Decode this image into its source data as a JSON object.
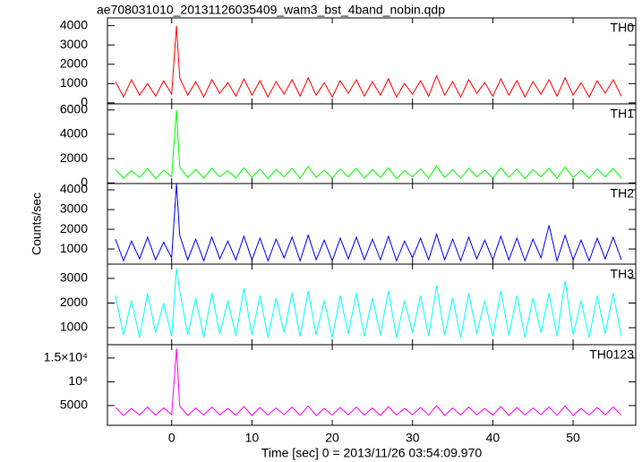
{
  "figure": {
    "title": "ae708031010_20131126035409_wam3_bst_4band_nobin.qdp",
    "xlabel": "Time [sec] 0 = 2013/11/26 03:54:09.970",
    "ylabel": "Counts/sec"
  },
  "chart_data": [
    {
      "type": "line",
      "x": [
        -7,
        -6,
        -5,
        -4,
        -3,
        -2,
        -1,
        0,
        0.6,
        1,
        2,
        3,
        4,
        5,
        6,
        7,
        8,
        9,
        10,
        11,
        12,
        13,
        14,
        15,
        16,
        17,
        18,
        19,
        20,
        21,
        22,
        23,
        24,
        25,
        26,
        27,
        28,
        29,
        30,
        31,
        32,
        33,
        34,
        35,
        36,
        37,
        38,
        39,
        40,
        41,
        42,
        43,
        44,
        45,
        46,
        47,
        48,
        49,
        50,
        51,
        52,
        53,
        54,
        55,
        56
      ],
      "series": [
        {
          "name": "TH0",
          "color": "#ff0000",
          "values": [
            1100,
            300,
            1200,
            400,
            1000,
            350,
            1150,
            450,
            4000,
            1300,
            400,
            1100,
            300,
            1200,
            500,
            1050,
            350,
            1250,
            400,
            1150,
            300,
            1100,
            450,
            1200,
            350,
            1300,
            400,
            1050,
            300,
            1150,
            500,
            1200,
            350,
            1100,
            400,
            1250,
            300,
            1000,
            450,
            1150,
            350,
            1400,
            400,
            1100,
            300,
            1200,
            500,
            1050,
            350,
            1250,
            400,
            1150,
            300,
            1100,
            450,
            1200,
            350,
            1300,
            400,
            1050,
            300,
            1150,
            500,
            1200,
            350
          ]
        }
      ],
      "xlim": [
        -8,
        57.8
      ],
      "xticks": [
        0,
        10,
        20,
        30,
        40,
        50
      ],
      "ylim": [
        -50,
        4400
      ],
      "yticks": [
        0,
        1000,
        2000,
        3000,
        4000
      ]
    },
    {
      "type": "line",
      "x": [
        -7,
        -6,
        -5,
        -4,
        -3,
        -2,
        -1,
        0,
        0.6,
        1,
        2,
        3,
        4,
        5,
        6,
        7,
        8,
        9,
        10,
        11,
        12,
        13,
        14,
        15,
        16,
        17,
        18,
        19,
        20,
        21,
        22,
        23,
        24,
        25,
        26,
        27,
        28,
        29,
        30,
        31,
        32,
        33,
        34,
        35,
        36,
        37,
        38,
        39,
        40,
        41,
        42,
        43,
        44,
        45,
        46,
        47,
        48,
        49,
        50,
        51,
        52,
        53,
        54,
        55,
        56
      ],
      "series": [
        {
          "name": "TH1",
          "color": "#00ff00",
          "values": [
            1100,
            400,
            1000,
            450,
            1200,
            350,
            1050,
            500,
            6000,
            1300,
            450,
            1100,
            400,
            1200,
            500,
            1000,
            400,
            1250,
            450,
            1150,
            350,
            1100,
            500,
            1200,
            400,
            1350,
            450,
            1050,
            400,
            1150,
            500,
            1200,
            400,
            1100,
            450,
            1250,
            350,
            1000,
            500,
            1150,
            400,
            1400,
            450,
            1100,
            400,
            1200,
            500,
            1050,
            400,
            1250,
            450,
            1150,
            350,
            1100,
            500,
            1200,
            400,
            1300,
            450,
            1050,
            400,
            1150,
            500,
            1200,
            400
          ]
        }
      ],
      "xlim": [
        -8,
        57.8
      ],
      "xticks": [
        0,
        10,
        20,
        30,
        40,
        50
      ],
      "ylim": [
        -50,
        6500
      ],
      "yticks": [
        0,
        2000,
        4000,
        6000
      ]
    },
    {
      "type": "line",
      "x": [
        -7,
        -6,
        -5,
        -4,
        -3,
        -2,
        -1,
        0,
        0.6,
        1,
        2,
        3,
        4,
        5,
        6,
        7,
        8,
        9,
        10,
        11,
        12,
        13,
        14,
        15,
        16,
        17,
        18,
        19,
        20,
        21,
        22,
        23,
        24,
        25,
        26,
        27,
        28,
        29,
        30,
        31,
        32,
        33,
        34,
        35,
        36,
        37,
        38,
        39,
        40,
        41,
        42,
        43,
        44,
        45,
        46,
        47,
        48,
        49,
        50,
        51,
        52,
        53,
        54,
        55,
        56
      ],
      "series": [
        {
          "name": "TH2",
          "color": "#0000ff",
          "values": [
            1500,
            400,
            1400,
            500,
            1600,
            450,
            1350,
            550,
            4300,
            1700,
            450,
            1500,
            400,
            1600,
            500,
            1400,
            450,
            1650,
            450,
            1550,
            400,
            1500,
            550,
            1600,
            400,
            1700,
            450,
            1450,
            400,
            1550,
            500,
            1600,
            450,
            1500,
            450,
            1650,
            400,
            1400,
            550,
            1550,
            450,
            1750,
            450,
            1500,
            400,
            1600,
            500,
            1450,
            450,
            1650,
            450,
            1550,
            400,
            1500,
            550,
            2200,
            400,
            1700,
            450,
            1450,
            400,
            1550,
            500,
            1600,
            450
          ]
        }
      ],
      "xlim": [
        -8,
        57.8
      ],
      "xticks": [
        0,
        10,
        20,
        30,
        40,
        50
      ],
      "ylim": [
        230,
        4320
      ],
      "yticks": [
        1000,
        2000,
        3000,
        4000
      ]
    },
    {
      "type": "line",
      "x": [
        -7,
        -6,
        -5,
        -4,
        -3,
        -2,
        -1,
        0,
        0.6,
        1,
        2,
        3,
        4,
        5,
        6,
        7,
        8,
        9,
        10,
        11,
        12,
        13,
        14,
        15,
        16,
        17,
        18,
        19,
        20,
        21,
        22,
        23,
        24,
        25,
        26,
        27,
        28,
        29,
        30,
        31,
        32,
        33,
        34,
        35,
        36,
        37,
        38,
        39,
        40,
        41,
        42,
        43,
        44,
        45,
        46,
        47,
        48,
        49,
        50,
        51,
        52,
        53,
        54,
        55,
        56
      ],
      "series": [
        {
          "name": "TH3",
          "color": "#00ffff",
          "values": [
            2300,
            700,
            2100,
            600,
            2400,
            800,
            2000,
            650,
            3400,
            2500,
            700,
            2200,
            600,
            2400,
            750,
            2100,
            650,
            2600,
            700,
            2300,
            600,
            2200,
            800,
            2400,
            650,
            2500,
            700,
            2100,
            600,
            2300,
            750,
            2400,
            650,
            2200,
            700,
            2500,
            600,
            2100,
            800,
            2300,
            650,
            2700,
            700,
            2200,
            600,
            2400,
            750,
            2100,
            650,
            2500,
            700,
            2300,
            600,
            2200,
            800,
            2400,
            650,
            2900,
            700,
            2100,
            600,
            2300,
            750,
            2400,
            650
          ]
        }
      ],
      "xlim": [
        -8,
        57.8
      ],
      "xticks": [
        0,
        10,
        20,
        30,
        40,
        50
      ],
      "ylim": [
        310,
        3580
      ],
      "yticks": [
        1000,
        2000,
        3000
      ]
    },
    {
      "type": "line",
      "x": [
        -7,
        -6,
        -5,
        -4,
        -3,
        -2,
        -1,
        0,
        0.6,
        1,
        2,
        3,
        4,
        5,
        6,
        7,
        8,
        9,
        10,
        11,
        12,
        13,
        14,
        15,
        16,
        17,
        18,
        19,
        20,
        21,
        22,
        23,
        24,
        25,
        26,
        27,
        28,
        29,
        30,
        31,
        32,
        33,
        34,
        35,
        36,
        37,
        38,
        39,
        40,
        41,
        42,
        43,
        44,
        45,
        46,
        47,
        48,
        49,
        50,
        51,
        52,
        53,
        54,
        55,
        56
      ],
      "series": [
        {
          "name": "TH0123",
          "color": "#ff00ff",
          "values": [
            4600,
            2900,
            4400,
            3000,
            4700,
            2950,
            4500,
            3100,
            17000,
            4900,
            2900,
            4500,
            3000,
            4700,
            3050,
            4400,
            2950,
            4800,
            2900,
            4600,
            3000,
            4500,
            3100,
            4700,
            2950,
            4900,
            2900,
            4400,
            3000,
            4600,
            3050,
            4700,
            2950,
            4500,
            2900,
            4800,
            3000,
            4400,
            3100,
            4600,
            2950,
            5000,
            2900,
            4500,
            3000,
            4700,
            3050,
            4400,
            2950,
            4800,
            2900,
            4600,
            3000,
            4500,
            3100,
            4700,
            2950,
            4900,
            2900,
            4400,
            3000,
            4600,
            3050,
            4700,
            2950
          ]
        }
      ],
      "xlim": [
        -8,
        57.8
      ],
      "xticks": [
        0,
        10,
        20,
        30,
        40,
        50
      ],
      "ylim": [
        850,
        17800
      ],
      "yticks": [
        5000,
        {
          "value": 10000,
          "label": "10⁴"
        },
        {
          "value": 15000,
          "label": "1.5×10⁴"
        }
      ]
    }
  ]
}
